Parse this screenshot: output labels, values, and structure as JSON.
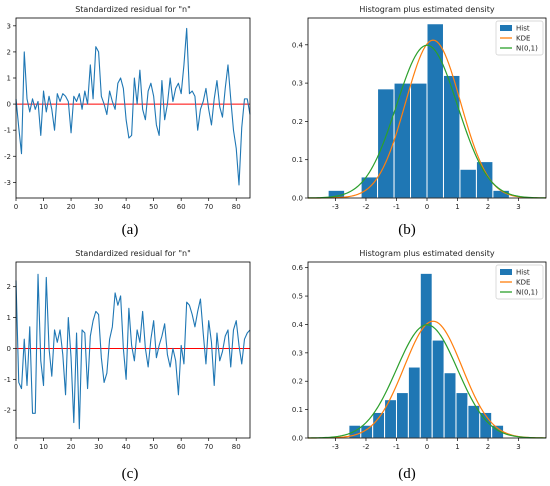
{
  "captions": [
    "(a)",
    "(b)",
    "(c)",
    "(d)"
  ],
  "colors": {
    "series_blue": "#1f77b4",
    "zero_line_red": "#ff0000",
    "kde_orange": "#ff7f0e",
    "normal_green": "#2ca02c",
    "bar_edge": "#ffffff"
  },
  "chart_data": [
    {
      "type": "line",
      "title": "Standardized residual for \"n\"",
      "xlabel": "",
      "ylabel": "",
      "xlim": [
        0,
        85
      ],
      "ylim": [
        -3.6,
        3.3
      ],
      "xticks": [
        "0",
        "10",
        "20",
        "30",
        "40",
        "50",
        "60",
        "70",
        "80"
      ],
      "yticks": [
        "-3",
        "-2",
        "-1",
        "0",
        "1",
        "2",
        "3"
      ],
      "reference_line": 0,
      "grid": false,
      "x": [
        0,
        1,
        2,
        3,
        4,
        5,
        6,
        7,
        8,
        9,
        10,
        11,
        12,
        13,
        14,
        15,
        16,
        17,
        18,
        19,
        20,
        21,
        22,
        23,
        24,
        25,
        26,
        27,
        28,
        29,
        30,
        31,
        32,
        33,
        34,
        35,
        36,
        37,
        38,
        39,
        40,
        41,
        42,
        43,
        44,
        45,
        46,
        47,
        48,
        49,
        50,
        51,
        52,
        53,
        54,
        55,
        56,
        57,
        58,
        59,
        60,
        61,
        62,
        63,
        64,
        65,
        66,
        67,
        68,
        69,
        70,
        71,
        72,
        73,
        74,
        75,
        76,
        77,
        78,
        79,
        80,
        81,
        82,
        83,
        84,
        85
      ],
      "y": [
        0.2,
        -0.9,
        -1.9,
        2.0,
        0.2,
        -0.3,
        0.2,
        -0.2,
        0.1,
        -1.2,
        0.5,
        -0.3,
        0.3,
        -0.2,
        -1.0,
        0.4,
        0.1,
        0.4,
        0.3,
        0.1,
        -1.1,
        0.3,
        0.1,
        0.4,
        -0.2,
        0.5,
        0.0,
        1.5,
        0.2,
        2.2,
        2.0,
        0.3,
        0.0,
        -0.4,
        0.5,
        0.1,
        -0.2,
        0.8,
        1.0,
        0.6,
        -0.6,
        -1.3,
        -1.2,
        1.0,
        0.0,
        1.3,
        -0.2,
        -0.6,
        0.5,
        0.8,
        0.3,
        -0.8,
        -1.2,
        0.9,
        -0.6,
        0.0,
        1.0,
        0.1,
        0.6,
        0.8,
        0.4,
        1.5,
        2.9,
        0.4,
        0.5,
        0.3,
        -1.0,
        -0.2,
        0.1,
        0.6,
        -0.2,
        -0.8,
        0.2,
        0.9,
        -0.1,
        -0.5,
        0.6,
        1.5,
        0.2,
        -1.0,
        -1.7,
        -3.1,
        -0.9,
        0.2,
        0.2,
        -0.4
      ],
      "series_color": "#1f77b4"
    },
    {
      "type": "bar",
      "title": "Histogram plus estimated density",
      "xlabel": "",
      "ylabel": "",
      "xlim": [
        -3.9,
        3.9
      ],
      "ylim": [
        0,
        0.47
      ],
      "xticks": [
        "-3",
        "-2",
        "-1",
        "0",
        "1",
        "2",
        "3"
      ],
      "yticks": [
        "0.0",
        "0.1",
        "0.2",
        "0.3",
        "0.4"
      ],
      "legend": [
        "Hist",
        "KDE",
        "N(0,1)"
      ],
      "legend_position": "top-right",
      "grid": false,
      "bins": [
        {
          "x0": -3.24,
          "x1": -2.7,
          "value": 0.02
        },
        {
          "x0": -2.7,
          "x1": -2.16,
          "value": 0.0
        },
        {
          "x0": -2.16,
          "x1": -1.62,
          "value": 0.055
        },
        {
          "x0": -1.62,
          "x1": -1.08,
          "value": 0.285
        },
        {
          "x0": -1.08,
          "x1": -0.54,
          "value": 0.3
        },
        {
          "x0": -0.54,
          "x1": 0.0,
          "value": 0.3
        },
        {
          "x0": 0.0,
          "x1": 0.54,
          "value": 0.455
        },
        {
          "x0": 0.54,
          "x1": 1.08,
          "value": 0.32
        },
        {
          "x0": 1.08,
          "x1": 1.62,
          "value": 0.075
        },
        {
          "x0": 1.62,
          "x1": 2.16,
          "value": 0.095
        },
        {
          "x0": 2.16,
          "x1": 2.7,
          "value": 0.02
        }
      ],
      "kde": {
        "mean": 0.2,
        "sd": 0.9
      },
      "normal": {
        "mean": 0.0,
        "sd": 1.0
      }
    },
    {
      "type": "line",
      "title": "Standardized residual for \"n\"",
      "xlabel": "",
      "ylabel": "",
      "xlim": [
        0,
        85
      ],
      "ylim": [
        -2.9,
        2.8
      ],
      "xticks": [
        "0",
        "10",
        "20",
        "30",
        "40",
        "50",
        "60",
        "70",
        "80"
      ],
      "yticks": [
        "-2",
        "-1",
        "0",
        "1",
        "2"
      ],
      "reference_line": 0,
      "grid": false,
      "x": [
        0,
        1,
        2,
        3,
        4,
        5,
        6,
        7,
        8,
        9,
        10,
        11,
        12,
        13,
        14,
        15,
        16,
        17,
        18,
        19,
        20,
        21,
        22,
        23,
        24,
        25,
        26,
        27,
        28,
        29,
        30,
        31,
        32,
        33,
        34,
        35,
        36,
        37,
        38,
        39,
        40,
        41,
        42,
        43,
        44,
        45,
        46,
        47,
        48,
        49,
        50,
        51,
        52,
        53,
        54,
        55,
        56,
        57,
        58,
        59,
        60,
        61,
        62,
        63,
        64,
        65,
        66,
        67,
        68,
        69,
        70,
        71,
        72,
        73,
        74,
        75,
        76,
        77,
        78,
        79,
        80,
        81,
        82,
        83,
        84,
        85
      ],
      "y": [
        2.2,
        -1.1,
        -1.3,
        0.3,
        -1.2,
        0.7,
        -2.1,
        -2.1,
        2.4,
        -0.4,
        -1.2,
        2.3,
        0.0,
        -0.9,
        0.6,
        0.2,
        0.6,
        -0.2,
        -1.5,
        1.0,
        -0.3,
        -2.4,
        0.5,
        -2.6,
        0.6,
        0.5,
        -1.3,
        0.4,
        0.9,
        1.2,
        1.1,
        -0.3,
        -1.1,
        -0.8,
        0.3,
        0.7,
        1.8,
        1.4,
        1.7,
        0.0,
        -1.0,
        1.3,
        0.1,
        -0.4,
        0.6,
        0.2,
        1.2,
        0.0,
        -0.6,
        0.3,
        0.9,
        -0.3,
        0.1,
        0.4,
        0.8,
        -0.2,
        -0.6,
        0.0,
        -0.4,
        -1.5,
        0.1,
        -0.5,
        1.5,
        1.4,
        1.1,
        0.7,
        1.2,
        1.6,
        0.5,
        -0.5,
        0.9,
        0.2,
        -1.2,
        0.5,
        -0.4,
        -0.1,
        0.4,
        0.6,
        -0.6,
        0.6,
        0.9,
        0.1,
        -0.5,
        0.3,
        0.5,
        0.6
      ],
      "series_color": "#1f77b4"
    },
    {
      "type": "bar",
      "title": "Histogram plus estimated density",
      "xlabel": "",
      "ylabel": "",
      "xlim": [
        -3.9,
        3.9
      ],
      "ylim": [
        0,
        0.62
      ],
      "xticks": [
        "-3",
        "-2",
        "-1",
        "0",
        "1",
        "2",
        "3"
      ],
      "yticks": [
        "0.0",
        "0.1",
        "0.2",
        "0.3",
        "0.4",
        "0.5",
        "0.6"
      ],
      "legend": [
        "Hist",
        "KDE",
        "N(0,1)"
      ],
      "legend_position": "top-right",
      "grid": false,
      "bins": [
        {
          "x0": -2.56,
          "x1": -2.17,
          "value": 0.045
        },
        {
          "x0": -2.17,
          "x1": -1.78,
          "value": 0.045
        },
        {
          "x0": -1.78,
          "x1": -1.39,
          "value": 0.09
        },
        {
          "x0": -1.39,
          "x1": -1.0,
          "value": 0.135
        },
        {
          "x0": -1.0,
          "x1": -0.61,
          "value": 0.16
        },
        {
          "x0": -0.61,
          "x1": -0.22,
          "value": 0.25
        },
        {
          "x0": -0.22,
          "x1": 0.17,
          "value": 0.58
        },
        {
          "x0": 0.17,
          "x1": 0.56,
          "value": 0.345
        },
        {
          "x0": 0.56,
          "x1": 0.95,
          "value": 0.23
        },
        {
          "x0": 0.95,
          "x1": 1.34,
          "value": 0.16
        },
        {
          "x0": 1.34,
          "x1": 1.73,
          "value": 0.115
        },
        {
          "x0": 1.73,
          "x1": 2.12,
          "value": 0.09
        },
        {
          "x0": 2.12,
          "x1": 2.51,
          "value": 0.045
        }
      ],
      "kde": {
        "mean": 0.2,
        "sd": 0.95
      },
      "normal": {
        "mean": 0.0,
        "sd": 1.0
      }
    }
  ]
}
